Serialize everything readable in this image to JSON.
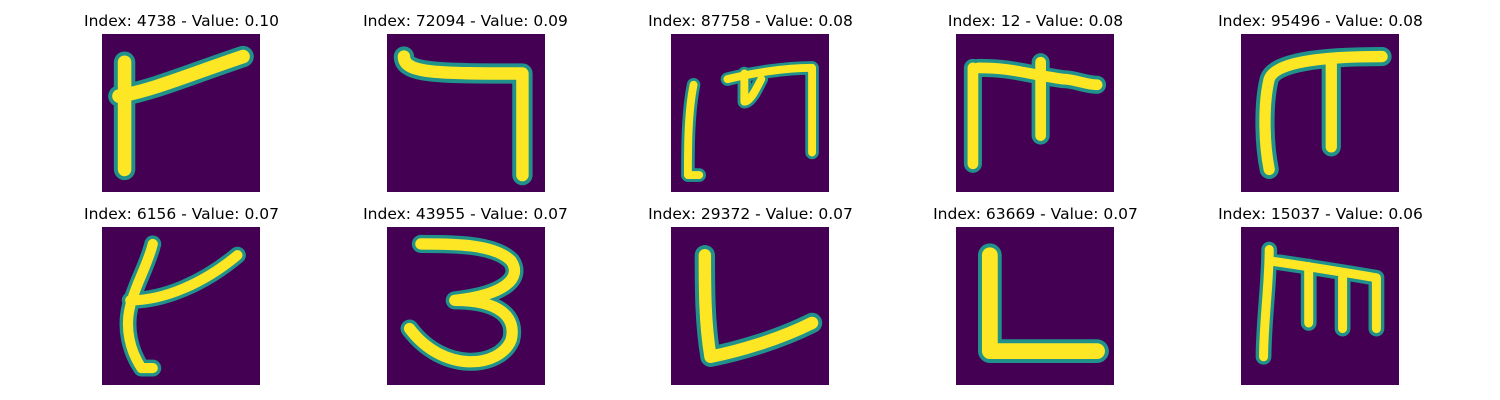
{
  "colors": {
    "background": "#440154",
    "stroke_core": "#fde725",
    "stroke_edge": "#21918c",
    "stroke_mid": "#5ec962"
  },
  "panels": [
    {
      "title": "Index: 4738 - Value: 0.10",
      "glyph": "hook-flag"
    },
    {
      "title": "Index: 72094 - Value: 0.09",
      "glyph": "seven-bracket"
    },
    {
      "title": "Index: 87758 - Value: 0.08",
      "glyph": "m-shape"
    },
    {
      "title": "Index: 12 - Value: 0.08",
      "glyph": "pi-cross"
    },
    {
      "title": "Index: 95496 - Value: 0.08",
      "glyph": "pi-shape"
    },
    {
      "title": "Index: 6156 - Value: 0.07",
      "glyph": "hook-flag-thin"
    },
    {
      "title": "Index: 43955 - Value: 0.07",
      "glyph": "three"
    },
    {
      "title": "Index: 29372 - Value: 0.07",
      "glyph": "l-shape-slant"
    },
    {
      "title": "Index: 63669 - Value: 0.07",
      "glyph": "l-shape"
    },
    {
      "title": "Index: 15037 - Value: 0.06",
      "glyph": "m-shape-small"
    }
  ]
}
